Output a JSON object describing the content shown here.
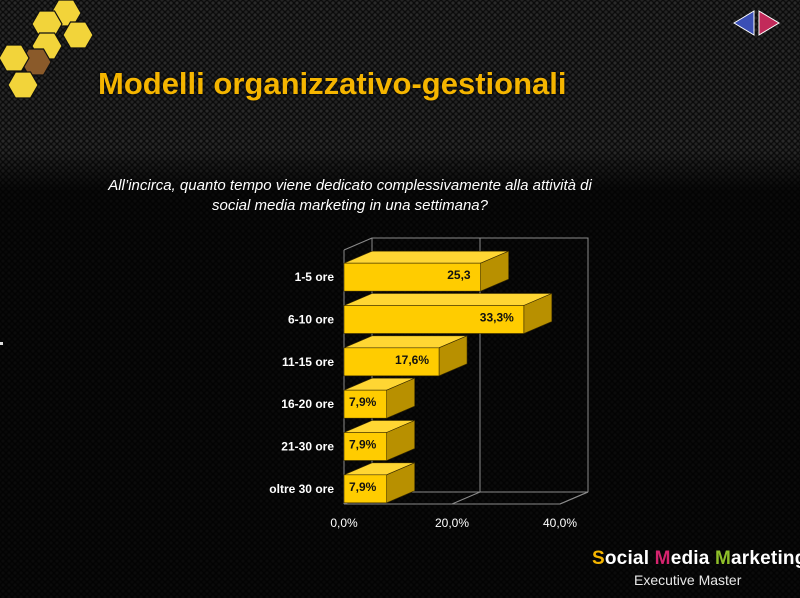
{
  "slide": {
    "title": "Modelli organizzativo-gestionali",
    "question_line1": "All’incirca, quanto tempo viene dedicato complessivamente alla attività di",
    "question_line2": "social media marketing in una settimana?"
  },
  "brand": {
    "name_parts": [
      "S",
      "ocial ",
      "M",
      "edia ",
      "M",
      "arketing"
    ],
    "subtitle": "Executive Master",
    "colors": {
      "s": "#f5b500",
      "m": "#d6246e",
      "k": "#8fbf2a"
    }
  },
  "colors": {
    "title": "#f5b500",
    "bar_front": "#ffcc00",
    "bar_top": "#ffd633",
    "bar_side": "#b89000",
    "hex_yellow": "#f2d43a",
    "hex_brown": "#8a5a2a",
    "nav_blue": "#3a4fb5",
    "nav_red": "#c22a5a"
  },
  "icons": [
    "honeycomb-logo",
    "nav-prev-arrow-icon",
    "nav-next-arrow-icon"
  ],
  "chart_data": {
    "type": "bar",
    "orientation": "horizontal",
    "three_d": true,
    "categories": [
      "1-5 ore",
      "6-10 ore",
      "11-15 ore",
      "16-20 ore",
      "21-30 ore",
      "oltre 30 ore"
    ],
    "values": [
      25.3,
      33.3,
      17.6,
      7.9,
      7.9,
      7.9
    ],
    "data_labels": [
      "25,3",
      "33,3%",
      "17,6%",
      "7,9%",
      "7,9%",
      "7,9%"
    ],
    "x_ticks": [
      0,
      20,
      40
    ],
    "x_tick_labels": [
      "0,0%",
      "20,0%",
      "40,0%"
    ],
    "xlim": [
      0,
      40
    ],
    "grid": true
  }
}
